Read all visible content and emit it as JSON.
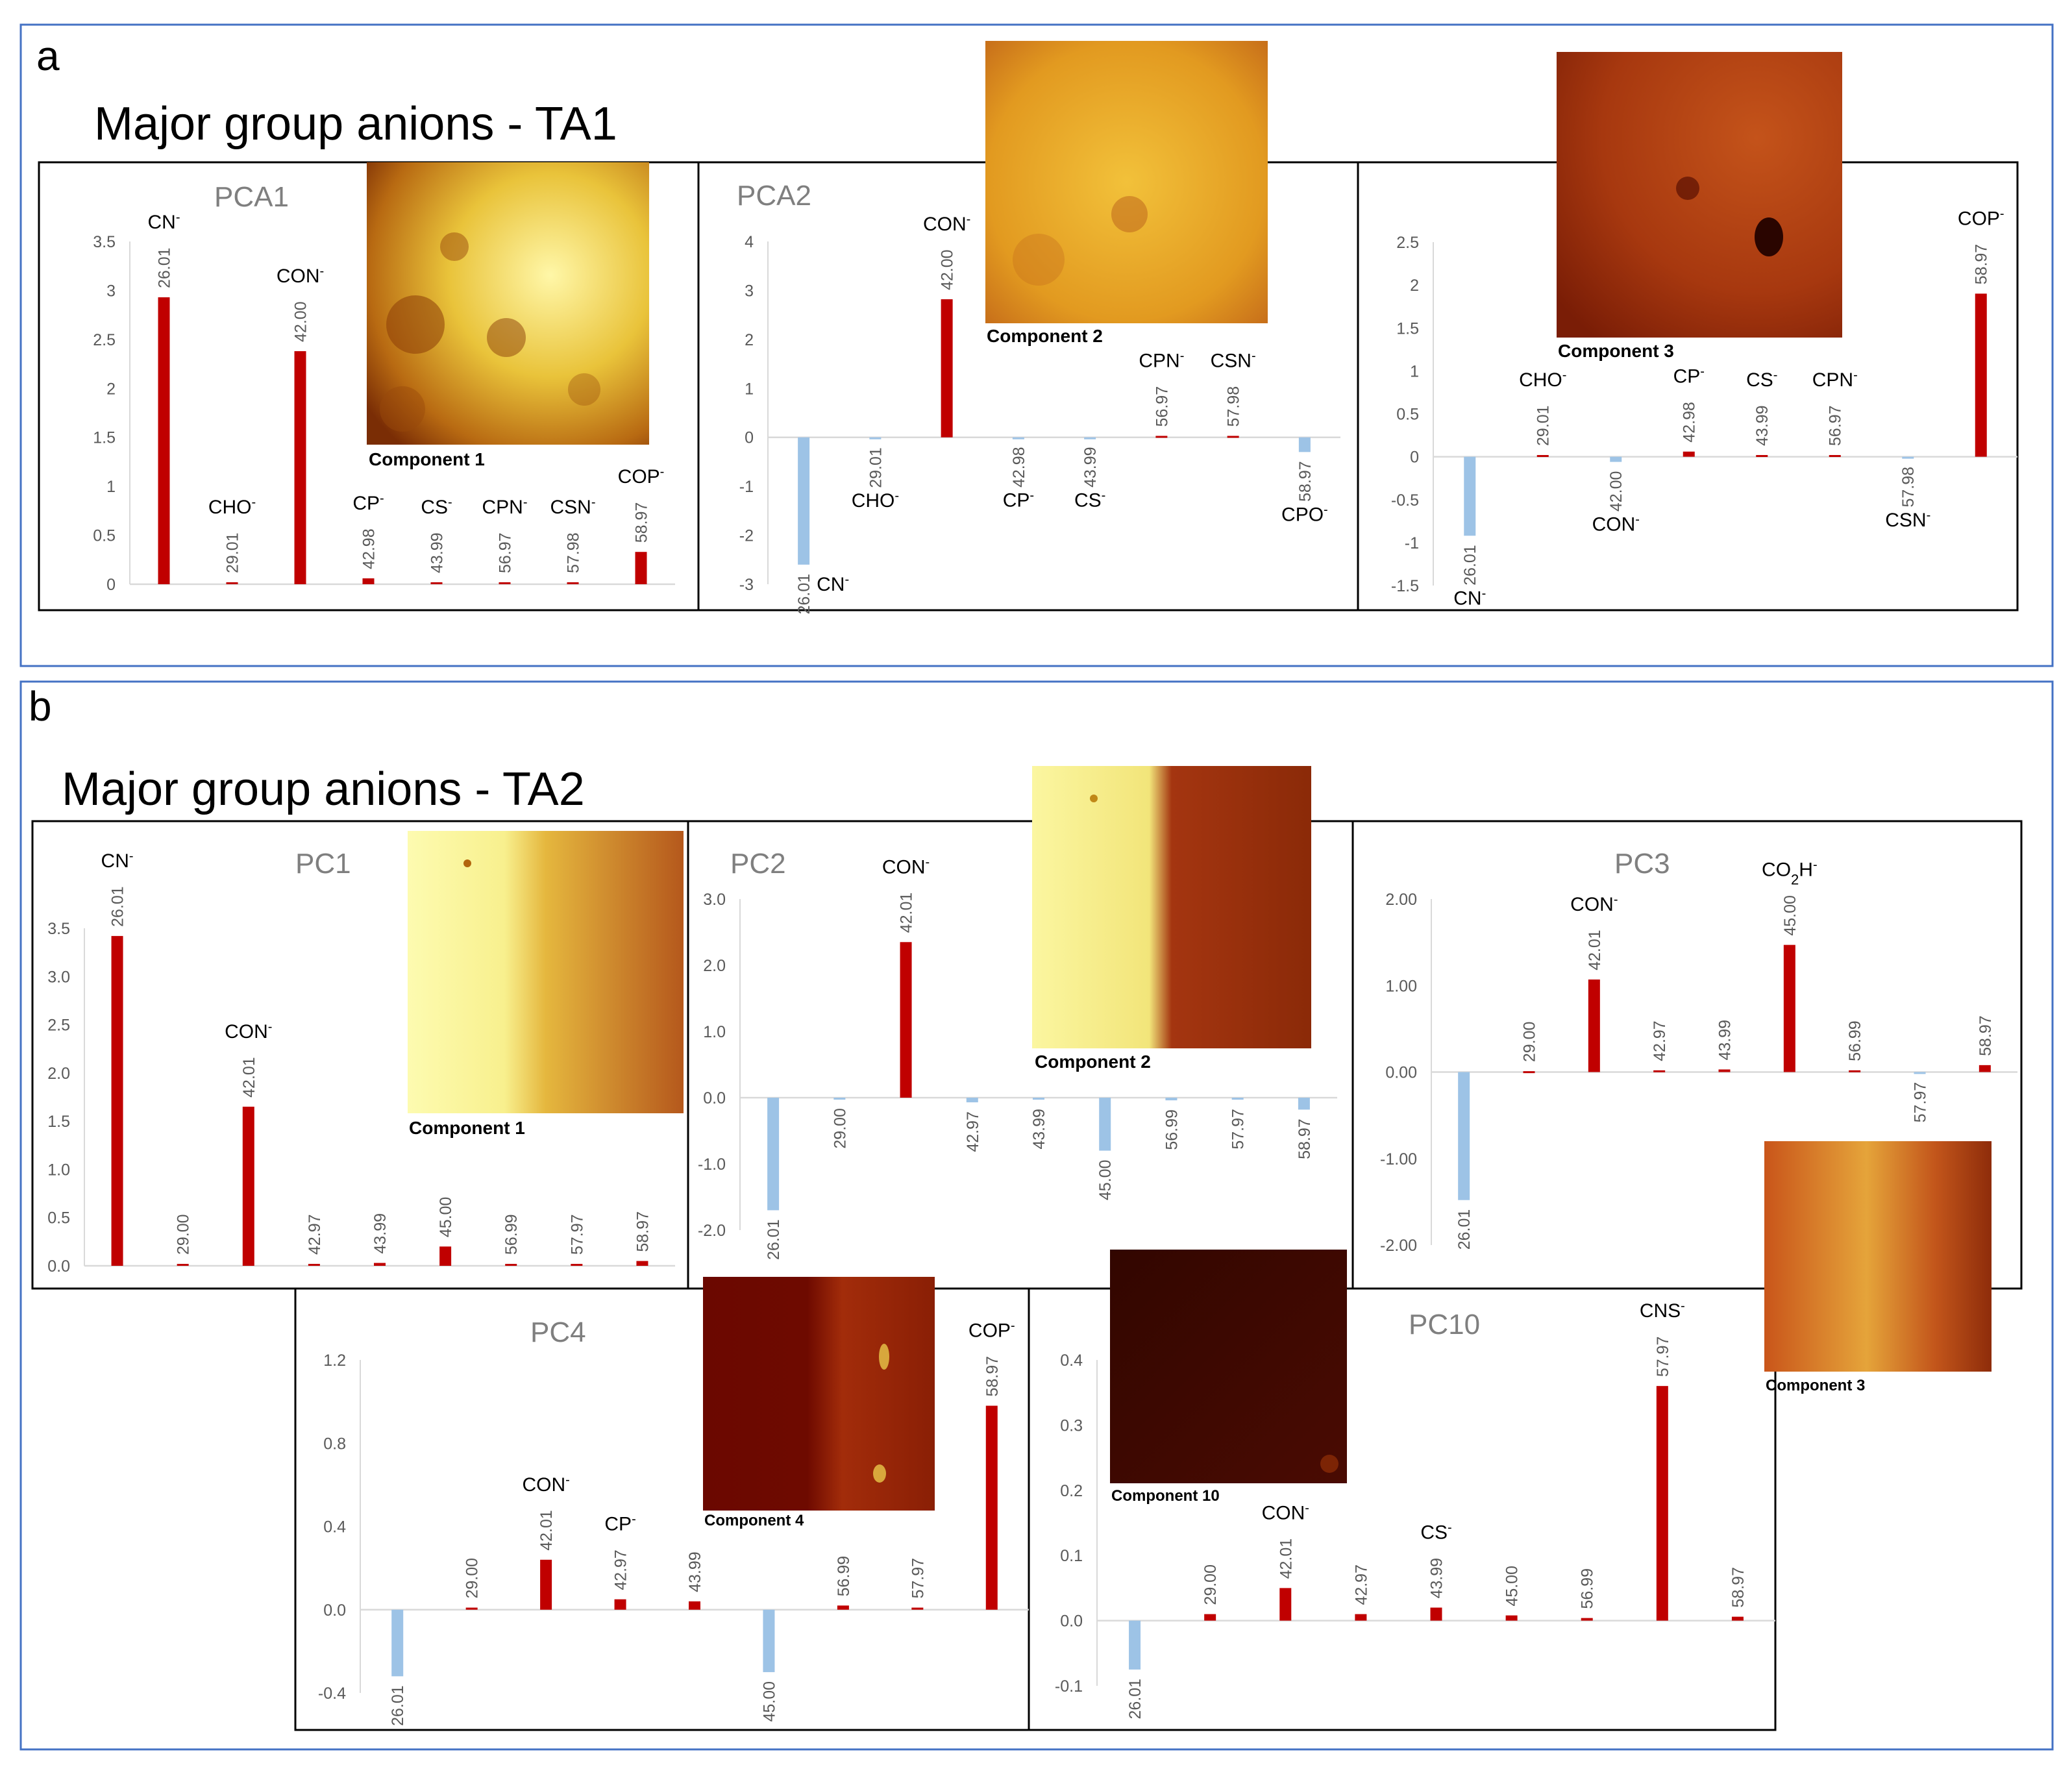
{
  "figure": {
    "panels": [
      {
        "letter": "a",
        "title": "Major group anions - TA1"
      },
      {
        "letter": "b",
        "title": "Major group anions - TA2"
      }
    ]
  },
  "colors": {
    "positive": "#c00000",
    "negative": "#9dc3e6",
    "panel_border": "#4472c4"
  },
  "chart_data": [
    {
      "type": "bar",
      "panel": "a",
      "title": "PCA1",
      "categories": [
        "26.01",
        "29.01",
        "42.00",
        "42.98",
        "43.99",
        "56.97",
        "57.98",
        "58.97"
      ],
      "values": [
        2.93,
        0.02,
        2.38,
        0.06,
        0.02,
        0.02,
        0.02,
        0.33
      ],
      "ions": [
        "CN-",
        "CHO-",
        "CON-",
        "CP-",
        "CS-",
        "CPN-",
        "CSN-",
        "COP-"
      ],
      "yticks": [
        "0",
        "0.5",
        "1",
        "1.5",
        "2",
        "2.5",
        "3",
        "3.5"
      ],
      "ylim": [
        0,
        3.5
      ],
      "ylabel": "",
      "xlabel": "",
      "image_caption": "Component 1"
    },
    {
      "type": "bar",
      "panel": "a",
      "title": "PCA2",
      "categories": [
        "26.01",
        "29.01",
        "42.00",
        "42.98",
        "43.99",
        "56.97",
        "57.98",
        "58.97"
      ],
      "values": [
        -2.6,
        -0.02,
        2.82,
        -0.01,
        -0.01,
        0.03,
        0.03,
        -0.3
      ],
      "ions": [
        "CN-",
        "CHO-",
        "CON-",
        "CP-",
        "CS-",
        "CPN-",
        "CSN-",
        "CPO-"
      ],
      "yticks": [
        "-3",
        "-2",
        "-1",
        "0",
        "1",
        "2",
        "3",
        "4"
      ],
      "ylim": [
        -3,
        4
      ],
      "ylabel": "",
      "xlabel": "",
      "image_caption": "Component 2"
    },
    {
      "type": "bar",
      "panel": "a",
      "title": "",
      "categories": [
        "26.01",
        "29.01",
        "42.00",
        "42.98",
        "43.99",
        "56.97",
        "57.98",
        "58.97"
      ],
      "values": [
        -0.92,
        0.02,
        -0.06,
        0.06,
        0.02,
        0.02,
        -0.01,
        1.9
      ],
      "ions": [
        "CN-",
        "CHO-",
        "CON-",
        "CP-",
        "CS-",
        "CPN-",
        "CSN-",
        "COP-"
      ],
      "yticks": [
        "-1.5",
        "-1",
        "-0.5",
        "0",
        "0.5",
        "1",
        "1.5",
        "2",
        "2.5"
      ],
      "ylim": [
        -1.5,
        2.5
      ],
      "ylabel": "",
      "xlabel": "",
      "image_caption": "Component 3"
    },
    {
      "type": "bar",
      "panel": "b",
      "title": "PC1",
      "categories": [
        "26.01",
        "29.00",
        "42.01",
        "42.97",
        "43.99",
        "45.00",
        "56.99",
        "57.97",
        "58.97"
      ],
      "values": [
        3.42,
        0.02,
        1.65,
        0.02,
        0.03,
        0.2,
        0.02,
        0.02,
        0.05
      ],
      "ions": [
        "CN-",
        "",
        "CON-",
        "",
        "",
        "",
        "",
        "",
        ""
      ],
      "yticks": [
        "0.0",
        "0.5",
        "1.0",
        "1.5",
        "2.0",
        "2.5",
        "3.0",
        "3.5"
      ],
      "ylim": [
        0,
        3.5
      ],
      "ylabel": "",
      "xlabel": "",
      "image_caption": "Component 1"
    },
    {
      "type": "bar",
      "panel": "b",
      "title": "PC2",
      "categories": [
        "26.01",
        "29.00",
        "42.01",
        "42.97",
        "43.99",
        "45.00",
        "56.99",
        "57.97",
        "58.97"
      ],
      "values": [
        -1.7,
        -0.02,
        2.35,
        -0.07,
        -0.03,
        -0.8,
        -0.04,
        -0.03,
        -0.18
      ],
      "ions": [
        "",
        "",
        "CON-",
        "",
        "",
        "",
        "",
        "",
        ""
      ],
      "yticks": [
        "-2.0",
        "-1.0",
        "0.0",
        "1.0",
        "2.0",
        "3.0"
      ],
      "ylim": [
        -2,
        3
      ],
      "ylabel": "",
      "xlabel": "",
      "image_caption": "Component 2"
    },
    {
      "type": "bar",
      "panel": "b",
      "title": "PC3",
      "categories": [
        "26.01",
        "29.00",
        "42.01",
        "42.97",
        "43.99",
        "45.00",
        "56.99",
        "57.97",
        "58.97"
      ],
      "values": [
        -1.48,
        0.01,
        1.07,
        0.02,
        0.03,
        1.47,
        0.02,
        -0.01,
        0.08
      ],
      "ions": [
        "",
        "",
        "CON-",
        "",
        "",
        "CO2H-",
        "",
        "",
        ""
      ],
      "yticks": [
        "-2.00",
        "-1.00",
        "0.00",
        "1.00",
        "2.00"
      ],
      "ylim": [
        -2,
        2
      ],
      "ylabel": "",
      "xlabel": "",
      "image_caption": "Component 3"
    },
    {
      "type": "bar",
      "panel": "b",
      "title": "PC4",
      "categories": [
        "26.01",
        "29.00",
        "42.01",
        "42.97",
        "43.99",
        "45.00",
        "56.99",
        "57.97",
        "58.97"
      ],
      "values": [
        -0.32,
        0.01,
        0.24,
        0.05,
        0.04,
        -0.3,
        0.02,
        0.01,
        0.98
      ],
      "ions": [
        "",
        "",
        "CON-",
        "CP-",
        "",
        "",
        "",
        "",
        "COP-"
      ],
      "yticks": [
        "-0.4",
        "0.0",
        "0.4",
        "0.8",
        "1.2"
      ],
      "ylim": [
        -0.4,
        1.2
      ],
      "ylabel": "",
      "xlabel": "",
      "image_caption": "Component 4"
    },
    {
      "type": "bar",
      "panel": "b",
      "title": "PC10",
      "categories": [
        "26.01",
        "29.00",
        "42.01",
        "42.97",
        "43.99",
        "45.00",
        "56.99",
        "57.97",
        "58.97"
      ],
      "values": [
        -0.075,
        0.01,
        0.05,
        0.01,
        0.02,
        0.008,
        0.004,
        0.36,
        0.006
      ],
      "ions": [
        "",
        "",
        "CON-",
        "",
        "CS-",
        "",
        "",
        "CNS-",
        ""
      ],
      "yticks": [
        "-0.1",
        "0.0",
        "0.1",
        "0.2",
        "0.3",
        "0.4"
      ],
      "ylim": [
        -0.1,
        0.4
      ],
      "ylabel": "",
      "xlabel": "",
      "image_caption": "Component 10"
    }
  ]
}
